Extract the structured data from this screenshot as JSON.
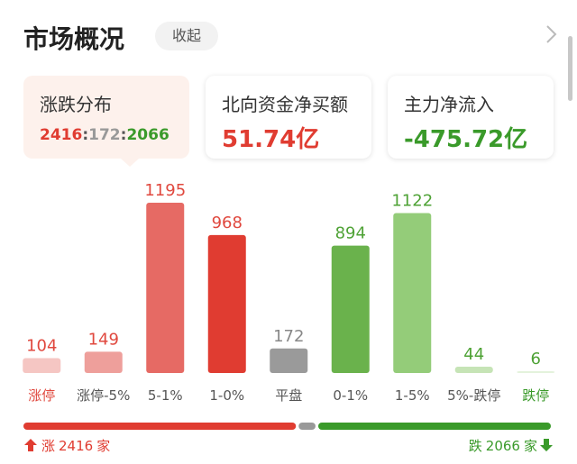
{
  "header": {
    "title": "市场概况",
    "toggle": "收起"
  },
  "cards": [
    {
      "title": "涨跌分布"
    },
    {
      "title": "北向资金净买额",
      "value": "51.74亿"
    },
    {
      "title": "主力净流入",
      "value": "-475.72亿"
    }
  ],
  "breadth": {
    "up": 2416,
    "flat": 172,
    "down": 2066,
    "separator": ":",
    "up_label": "涨",
    "down_label": "跌",
    "unit": "家",
    "colors": {
      "up": "#e03c31",
      "flat": "#999999",
      "down": "#3a9a2a"
    }
  },
  "chart_data": {
    "type": "bar",
    "categories": [
      "涨停",
      "涨停-5%",
      "5-1%",
      "1-0%",
      "平盘",
      "0-1%",
      "1-5%",
      "5%-跌停",
      "跌停"
    ],
    "values": [
      104,
      149,
      1195,
      968,
      172,
      894,
      1122,
      44,
      6
    ],
    "colors": [
      "#f5c6c3",
      "#ee9f9b",
      "#e66a64",
      "#e03c31",
      "#9a9a9a",
      "#6ab24c",
      "#94cc79",
      "#c6e4b6",
      "#e4f2dc"
    ],
    "value_label_colors": [
      "#e0483e",
      "#e0483e",
      "#e0483e",
      "#e0483e",
      "#888888",
      "#4ea235",
      "#4ea235",
      "#4ea235",
      "#4ea235"
    ],
    "category_label_colors": [
      "#e0483e",
      "#555555",
      "#555555",
      "#555555",
      "#555555",
      "#555555",
      "#555555",
      "#555555",
      "#3a9a2a"
    ]
  }
}
